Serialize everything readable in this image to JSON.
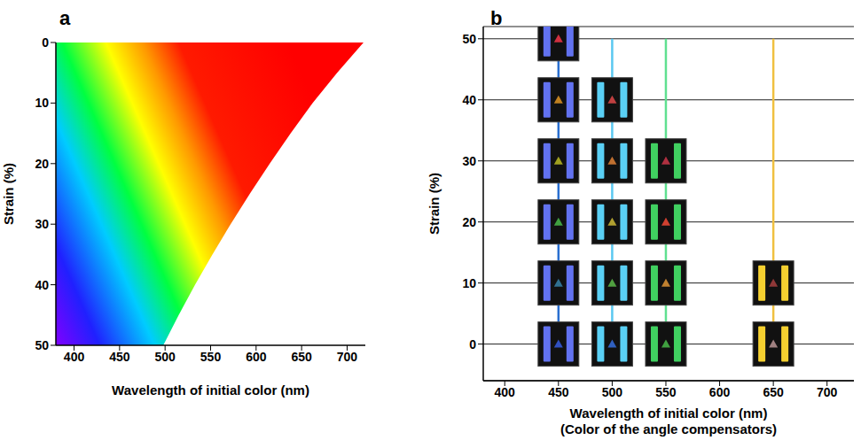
{
  "chart_data": [
    {
      "type": "area",
      "title": "a",
      "x": [
        498,
        515,
        533,
        552,
        572,
        593,
        615,
        638,
        662,
        689,
        718
      ],
      "values": [
        50,
        45,
        40,
        35,
        30,
        25,
        20,
        15,
        10,
        5,
        0
      ],
      "xlabel": "Wavelength of initial color (nm)",
      "ylabel": "Strain (%)",
      "xlim": [
        380,
        720
      ],
      "ylim": [
        0,
        50
      ],
      "xticks": [
        400,
        450,
        500,
        550,
        600,
        650,
        700
      ],
      "yticks": [
        0,
        10,
        20,
        30,
        40,
        50
      ],
      "grid": false
    },
    {
      "type": "scatter",
      "title": "b",
      "xlabel": [
        "Wavelength of initial color (nm)",
        "(Color of the angle compensators)"
      ],
      "ylabel": "Strain (%)",
      "xlim": [
        380,
        725
      ],
      "ylim": [
        -6,
        52
      ],
      "xticks": [
        400,
        450,
        500,
        550,
        600,
        650,
        700
      ],
      "yticks": [
        0,
        10,
        20,
        30,
        40,
        50
      ],
      "grid": true,
      "series": [
        {
          "x": [
            450,
            450,
            450,
            450,
            450,
            450
          ],
          "values": [
            0,
            10,
            20,
            30,
            40,
            50
          ],
          "color": "#6272f0",
          "colors": [
            "#3050c0",
            "#307090",
            "#40a040",
            "#a0a020",
            "#c08020",
            "#d03040"
          ]
        },
        {
          "x": [
            500,
            500,
            500,
            500,
            500
          ],
          "values": [
            0,
            10,
            20,
            30,
            40
          ],
          "color": "#5ad0f5",
          "colors": [
            "#3060c0",
            "#50a040",
            "#b0a030",
            "#c07030",
            "#c04040"
          ]
        },
        {
          "x": [
            550,
            550,
            550,
            550
          ],
          "values": [
            0,
            10,
            20,
            30
          ],
          "color": "#40d060",
          "colors": [
            "#40a040",
            "#c08030",
            "#d04030",
            "#b03040"
          ]
        },
        {
          "x": [
            650,
            650
          ],
          "values": [
            0,
            10
          ],
          "color": "#f5d030",
          "colors": [
            "#a08080",
            "#903838"
          ]
        }
      ]
    }
  ]
}
